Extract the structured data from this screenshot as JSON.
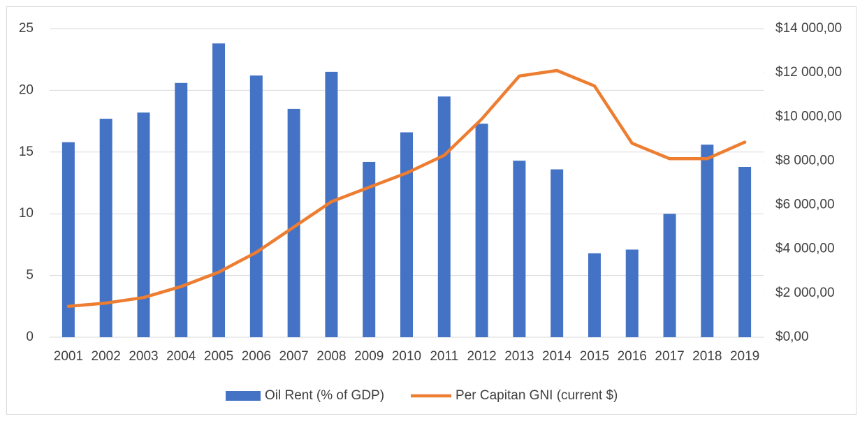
{
  "chart_data": {
    "type": "bar",
    "categories": [
      "2001",
      "2002",
      "2003",
      "2004",
      "2005",
      "2006",
      "2007",
      "2008",
      "2009",
      "2010",
      "2011",
      "2012",
      "2013",
      "2014",
      "2015",
      "2016",
      "2017",
      "2018",
      "2019"
    ],
    "series": [
      {
        "name": "Oil Rent (% of GDP)",
        "color": "#4472c4",
        "type": "bar",
        "values": [
          15.8,
          17.7,
          18.2,
          20.6,
          23.8,
          21.2,
          18.5,
          21.5,
          14.2,
          16.6,
          19.5,
          17.3,
          14.3,
          13.6,
          6.8,
          7.1,
          10.0,
          15.6,
          13.8
        ]
      },
      {
        "name": "Per Capitan GNI (current $)",
        "color": "#ed7d31",
        "type": "line",
        "axis": "y2",
        "values": [
          1400,
          1550,
          1800,
          2300,
          2950,
          3850,
          5000,
          6150,
          6800,
          7450,
          8250,
          9900,
          11850,
          12100,
          11400,
          8800,
          8100,
          8100,
          8850
        ]
      }
    ],
    "ylim": [
      0,
      25
    ],
    "yticks": [
      0,
      5,
      10,
      15,
      20,
      25
    ],
    "y2lim": [
      0,
      14000
    ],
    "y2ticks": [
      {
        "value": 0,
        "label": "$0,00"
      },
      {
        "value": 2000,
        "label": "$2 000,00"
      },
      {
        "value": 4000,
        "label": "$4 000,00"
      },
      {
        "value": 6000,
        "label": "$6 000,00"
      },
      {
        "value": 8000,
        "label": "$8 000,00"
      },
      {
        "value": 10000,
        "label": "$10 000,00"
      },
      {
        "value": 12000,
        "label": "$12 000,00"
      },
      {
        "value": 14000,
        "label": "$14 000,00"
      }
    ],
    "grid": true,
    "legend": "bottom"
  }
}
